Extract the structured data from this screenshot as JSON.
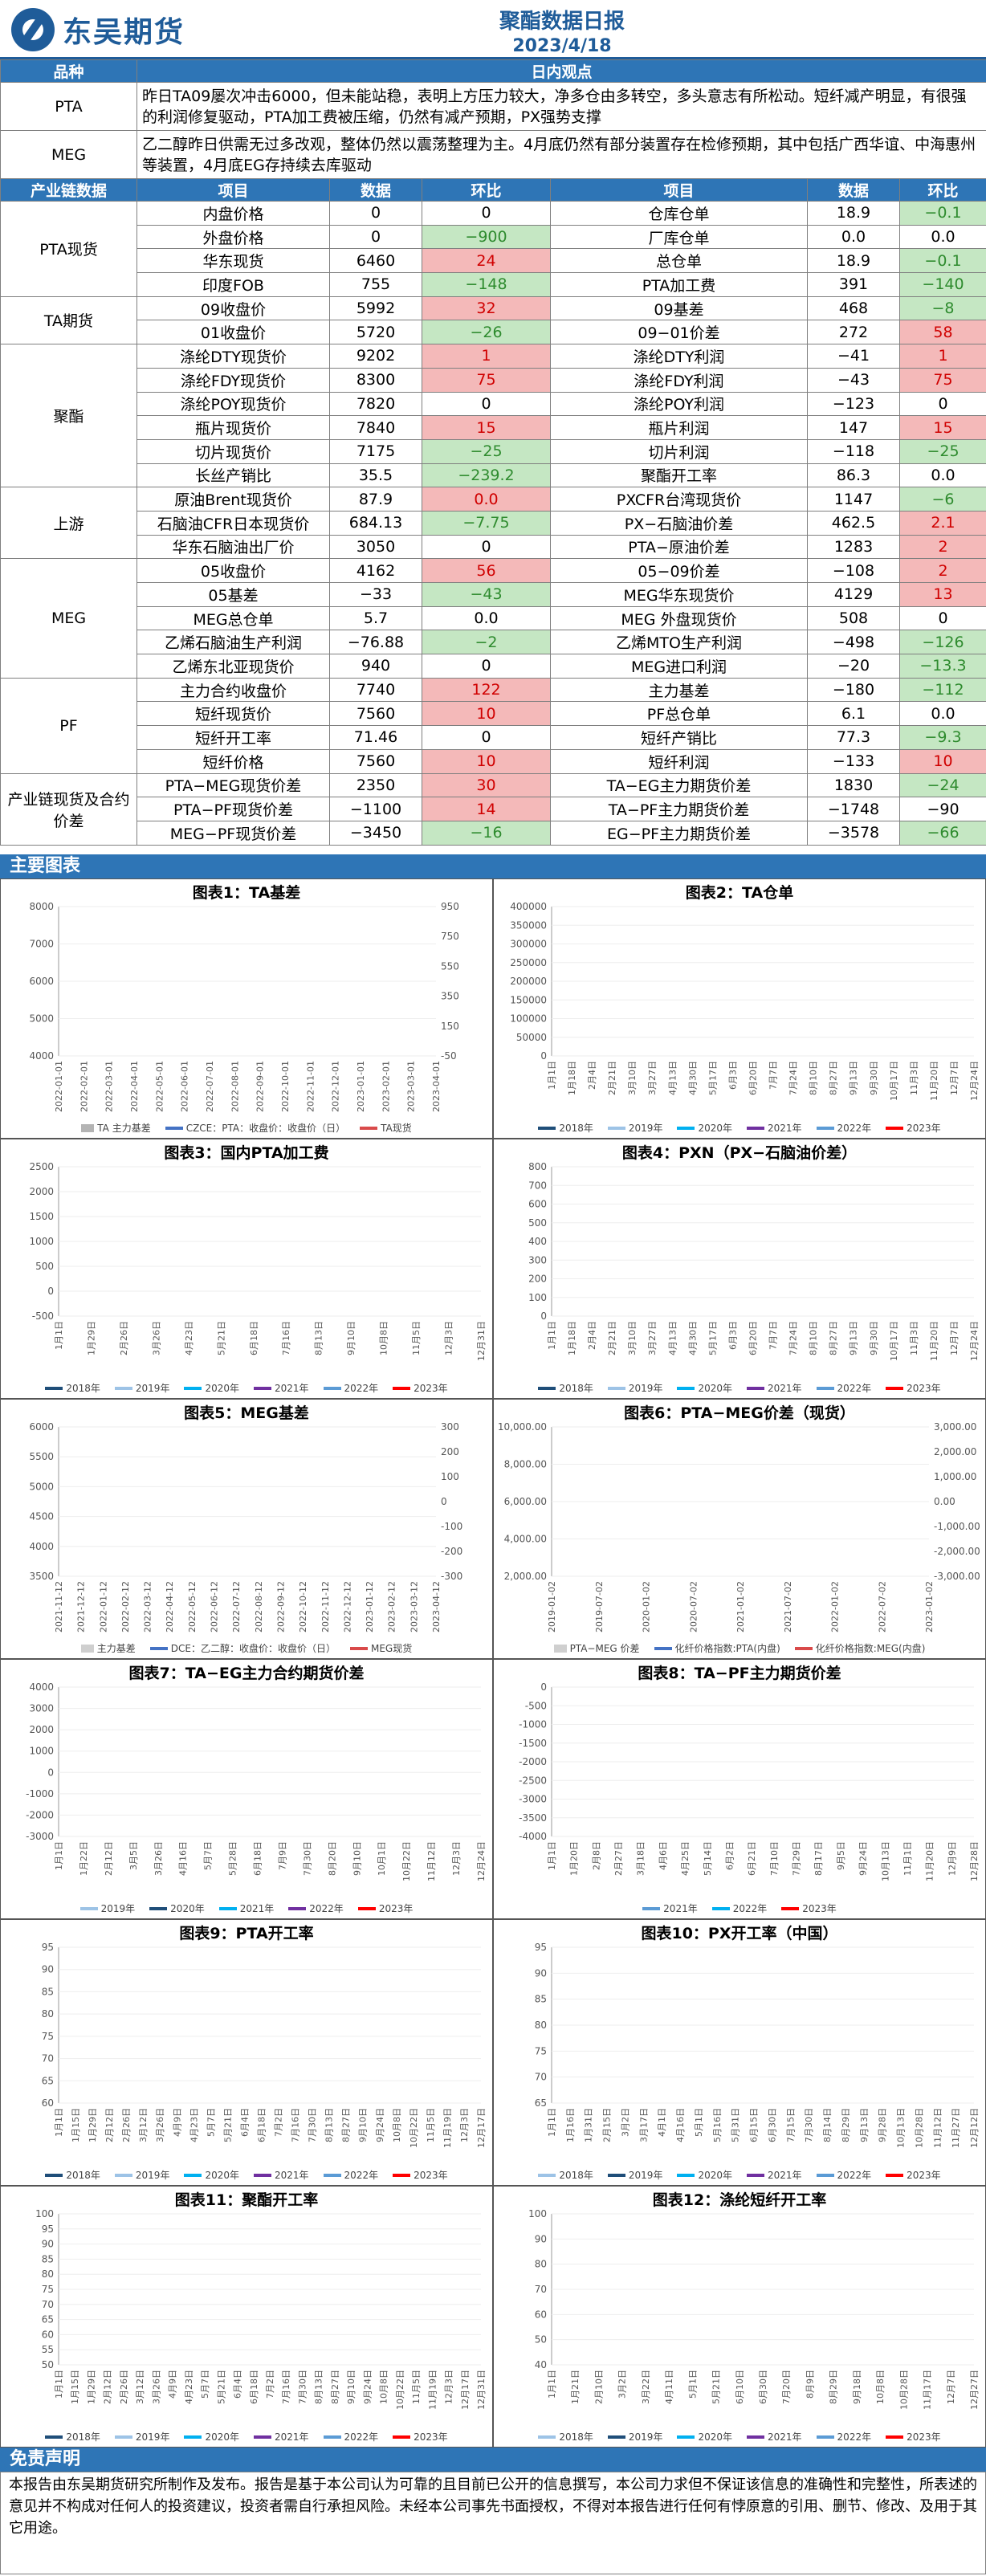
{
  "header": {
    "logo_text": "东吴期货",
    "title": "聚酯数据日报",
    "date": "2023/4/18"
  },
  "viewpoint": {
    "col_product": "品种",
    "col_view": "日内观点",
    "rows": [
      {
        "product": "PTA",
        "text": "昨日TA09屡次冲击6000，但未能站稳，表明上方压力较大，净多仓由多转空，多头意志有所松动。短纤减产明显，有很强的利润修复驱动，PTA加工费被压缩，仍然有减产预期，PX强势支撑"
      },
      {
        "product": "MEG",
        "text": "乙二醇昨日供需无过多改观，整体仍然以震荡整理为主。4月底仍然有部分装置存在检修预期，其中包括广西华谊、中海惠州等装置，4月底EG存持续去库驱动"
      }
    ]
  },
  "table": {
    "headers": [
      "产业链数据",
      "项目",
      "数据",
      "环比",
      "项目",
      "数据",
      "环比"
    ],
    "groups": [
      {
        "name": "PTA现货",
        "rows": [
          {
            "i1": "内盘价格",
            "v1": "0",
            "c1": "0",
            "s1": "",
            "i2": "仓库仓单",
            "v2": "18.9",
            "c2": "−0.1",
            "s2": "green"
          },
          {
            "i1": "外盘价格",
            "v1": "0",
            "c1": "−900",
            "s1": "green",
            "i2": "厂库仓单",
            "v2": "0.0",
            "c2": "0.0",
            "s2": ""
          },
          {
            "i1": "华东现货",
            "v1": "6460",
            "c1": "24",
            "s1": "red",
            "i2": "总仓单",
            "v2": "18.9",
            "c2": "−0.1",
            "s2": "green"
          },
          {
            "i1": "印度FOB",
            "v1": "755",
            "c1": "−148",
            "s1": "green",
            "i2": "PTA加工费",
            "v2": "391",
            "c2": "−140",
            "s2": "green"
          }
        ]
      },
      {
        "name": "TA期货",
        "rows": [
          {
            "i1": "09收盘价",
            "v1": "5992",
            "c1": "32",
            "s1": "red",
            "i2": "09基差",
            "v2": "468",
            "c2": "−8",
            "s2": "green"
          },
          {
            "i1": "01收盘价",
            "v1": "5720",
            "c1": "−26",
            "s1": "green",
            "i2": "09−01价差",
            "v2": "272",
            "c2": "58",
            "s2": "red"
          }
        ]
      },
      {
        "name": "聚酯",
        "rows": [
          {
            "i1": "涤纶DTY现货价",
            "v1": "9202",
            "c1": "1",
            "s1": "red",
            "i2": "涤纶DTY利润",
            "v2": "−41",
            "c2": "1",
            "s2": "red"
          },
          {
            "i1": "涤纶FDY现货价",
            "v1": "8300",
            "c1": "75",
            "s1": "red",
            "i2": "涤纶FDY利润",
            "v2": "−43",
            "c2": "75",
            "s2": "red"
          },
          {
            "i1": "涤纶POY现货价",
            "v1": "7820",
            "c1": "0",
            "s1": "",
            "i2": "涤纶POY利润",
            "v2": "−123",
            "c2": "0",
            "s2": ""
          },
          {
            "i1": "瓶片现货价",
            "v1": "7840",
            "c1": "15",
            "s1": "red",
            "i2": "瓶片利润",
            "v2": "147",
            "c2": "15",
            "s2": "red"
          },
          {
            "i1": "切片现货价",
            "v1": "7175",
            "c1": "−25",
            "s1": "green",
            "i2": "切片利润",
            "v2": "−118",
            "c2": "−25",
            "s2": "green"
          },
          {
            "i1": "长丝产销比",
            "v1": "35.5",
            "c1": "−239.2",
            "s1": "green",
            "i2": "聚酯开工率",
            "v2": "86.3",
            "c2": "0.0",
            "s2": ""
          }
        ]
      },
      {
        "name": "上游",
        "rows": [
          {
            "i1": "原油Brent现货价",
            "v1": "87.9",
            "c1": "0.0",
            "s1": "red",
            "i2": "PXCFR台湾现货价",
            "v2": "1147",
            "c2": "−6",
            "s2": "green"
          },
          {
            "i1": "石脑油CFR日本现货价",
            "v1": "684.13",
            "c1": "−7.75",
            "s1": "green",
            "i2": "PX−石脑油价差",
            "v2": "462.5",
            "c2": "2.1",
            "s2": "red"
          },
          {
            "i1": "华东石脑油出厂价",
            "v1": "3050",
            "c1": "0",
            "s1": "",
            "i2": "PTA−原油价差",
            "v2": "1283",
            "c2": "2",
            "s2": "red"
          }
        ]
      },
      {
        "name": "MEG",
        "rows": [
          {
            "i1": "05收盘价",
            "v1": "4162",
            "c1": "56",
            "s1": "red",
            "i2": "05−09价差",
            "v2": "−108",
            "c2": "2",
            "s2": "red"
          },
          {
            "i1": "05基差",
            "v1": "−33",
            "c1": "−43",
            "s1": "green",
            "i2": "MEG华东现货价",
            "v2": "4129",
            "c2": "13",
            "s2": "red"
          },
          {
            "i1": "MEG总仓单",
            "v1": "5.7",
            "c1": "0.0",
            "s1": "",
            "i2": "MEG 外盘现货价",
            "v2": "508",
            "c2": "0",
            "s2": ""
          },
          {
            "i1": "乙烯石脑油生产利润",
            "v1": "−76.88",
            "c1": "−2",
            "s1": "green",
            "i2": "乙烯MTO生产利润",
            "v2": "−498",
            "c2": "−126",
            "s2": "green"
          },
          {
            "i1": "乙烯东北亚现货价",
            "v1": "940",
            "c1": "0",
            "s1": "",
            "i2": "MEG进口利润",
            "v2": "−20",
            "c2": "−13.3",
            "s2": "green"
          }
        ]
      },
      {
        "name": "PF",
        "rows": [
          {
            "i1": "主力合约收盘价",
            "v1": "7740",
            "c1": "122",
            "s1": "red",
            "i2": "主力基差",
            "v2": "−180",
            "c2": "−112",
            "s2": "green"
          },
          {
            "i1": "短纤现货价",
            "v1": "7560",
            "c1": "10",
            "s1": "red",
            "i2": "PF总仓单",
            "v2": "6.1",
            "c2": "0.0",
            "s2": ""
          },
          {
            "i1": "短纤开工率",
            "v1": "71.46",
            "c1": "0",
            "s1": "",
            "i2": "短纤产销比",
            "v2": "77.3",
            "c2": "−9.3",
            "s2": "green"
          },
          {
            "i1": "短纤价格",
            "v1": "7560",
            "c1": "10",
            "s1": "red",
            "i2": "短纤利润",
            "v2": "−133",
            "c2": "10",
            "s2": "red"
          }
        ]
      },
      {
        "name": "产业链现货及合约价差",
        "rows": [
          {
            "i1": "PTA−MEG现货价差",
            "v1": "2350",
            "c1": "30",
            "s1": "red",
            "i2": "TA−EG主力期货价差",
            "v2": "1830",
            "c2": "−24",
            "s2": "green"
          },
          {
            "i1": "PTA−PF现货价差",
            "v1": "−1100",
            "c1": "14",
            "s1": "red",
            "i2": "TA−PF主力期货价差",
            "v2": "−1748",
            "c2": "−90",
            "s2": ""
          },
          {
            "i1": "MEG−PF现货价差",
            "v1": "−3450",
            "c1": "−16",
            "s1": "green",
            "i2": "EG−PF主力期货价差",
            "v2": "−3578",
            "c2": "−66",
            "s2": "green"
          }
        ]
      }
    ]
  },
  "section_charts": "主要图表",
  "chart_data": [
    {
      "type": "area",
      "title": "图表1：TA基差",
      "x_ticks": [
        "2022-01-01",
        "2022-02-01",
        "2022-03-01",
        "2022-04-01",
        "2022-05-01",
        "2022-06-01",
        "2022-07-01",
        "2022-08-01",
        "2022-09-01",
        "2022-10-01",
        "2022-11-01",
        "2022-12-01",
        "2023-01-01",
        "2023-02-01",
        "2023-03-01",
        "2023-04-01"
      ],
      "y_ticks": [
        "8000",
        "7000",
        "6000",
        "5000",
        "4000"
      ],
      "y2_ticks": [
        "950",
        "750",
        "550",
        "350",
        "150",
        "-50"
      ],
      "legend": [
        "TA 主力基差",
        "CZCE：PTA：收盘价：收盘价（日）",
        "TA现货"
      ],
      "colors": [
        "#b4b4b4",
        "#4472c4",
        "#d94a4a"
      ]
    },
    {
      "type": "line",
      "title": "图表2：TA仓单",
      "x_ticks": [
        "1月1日",
        "1月18日",
        "2月4日",
        "2月21日",
        "3月10日",
        "3月27日",
        "4月13日",
        "4月30日",
        "5月17日",
        "6月3日",
        "6月20日",
        "7月7日",
        "7月24日",
        "8月10日",
        "8月27日",
        "9月13日",
        "9月30日",
        "10月17日",
        "11月3日",
        "11月20日",
        "12月7日",
        "12月24日"
      ],
      "y_ticks": [
        "400000",
        "350000",
        "300000",
        "250000",
        "200000",
        "150000",
        "100000",
        "50000",
        "0"
      ],
      "legend": [
        "2018年",
        "2019年",
        "2020年",
        "2021年",
        "2022年",
        "2023年"
      ],
      "colors": [
        "#1f4e79",
        "#9dc3e6",
        "#00b0f0",
        "#7030a0",
        "#5b9bd5",
        "#ff0000"
      ]
    },
    {
      "type": "line",
      "title": "图表3：国内PTA加工费",
      "x_ticks": [
        "1月1日",
        "1月29日",
        "2月26日",
        "3月26日",
        "4月23日",
        "5月21日",
        "6月18日",
        "7月16日",
        "8月13日",
        "9月10日",
        "10月8日",
        "11月5日",
        "12月3日",
        "12月31日"
      ],
      "y_ticks": [
        "2500",
        "2000",
        "1500",
        "1000",
        "500",
        "0",
        "-500"
      ],
      "legend": [
        "2018年",
        "2019年",
        "2020年",
        "2021年",
        "2022年",
        "2023年"
      ],
      "colors": [
        "#1f4e79",
        "#9dc3e6",
        "#00b0f0",
        "#7030a0",
        "#5b9bd5",
        "#ff0000"
      ]
    },
    {
      "type": "line",
      "title": "图表4：PXN（PX−石脑油价差）",
      "x_ticks": [
        "1月1日",
        "1月18日",
        "2月4日",
        "2月21日",
        "3月10日",
        "3月27日",
        "4月13日",
        "4月30日",
        "5月17日",
        "6月3日",
        "6月20日",
        "7月7日",
        "7月24日",
        "8月10日",
        "8月27日",
        "9月13日",
        "9月30日",
        "10月17日",
        "11月3日",
        "11月20日",
        "12月7日",
        "12月24日"
      ],
      "y_ticks": [
        "800",
        "700",
        "600",
        "500",
        "400",
        "300",
        "200",
        "100",
        "0"
      ],
      "legend": [
        "2018年",
        "2019年",
        "2020年",
        "2021年",
        "2022年",
        "2023年"
      ],
      "colors": [
        "#1f4e79",
        "#9dc3e6",
        "#00b0f0",
        "#7030a0",
        "#5b9bd5",
        "#ff0000"
      ]
    },
    {
      "type": "area",
      "title": "图表5：MEG基差",
      "x_ticks": [
        "2021-11-12",
        "2021-12-12",
        "2022-01-12",
        "2022-02-12",
        "2022-03-12",
        "2022-04-12",
        "2022-05-12",
        "2022-06-12",
        "2022-07-12",
        "2022-08-12",
        "2022-09-12",
        "2022-10-12",
        "2022-11-12",
        "2022-12-12",
        "2023-01-12",
        "2023-02-12",
        "2023-03-12",
        "2023-04-12"
      ],
      "y_ticks": [
        "6000",
        "5500",
        "5000",
        "4500",
        "4000",
        "3500"
      ],
      "y2_ticks": [
        "300",
        "200",
        "100",
        "0",
        "-100",
        "-200",
        "-300"
      ],
      "legend": [
        "主力基差",
        "DCE：乙二醇：收盘价：收盘价（日）",
        "MEG现货"
      ],
      "colors": [
        "#cfcfcf",
        "#4472c4",
        "#d94a4a"
      ]
    },
    {
      "type": "area",
      "title": "图表6：PTA−MEG价差（现货）",
      "x_ticks": [
        "2019-01-02",
        "2019-07-02",
        "2020-01-02",
        "2020-07-02",
        "2021-01-02",
        "2021-07-02",
        "2022-01-02",
        "2022-07-02",
        "2023-01-02"
      ],
      "y_ticks": [
        "10,000.00",
        "8,000.00",
        "6,000.00",
        "4,000.00",
        "2,000.00"
      ],
      "y2_ticks": [
        "3,000.00",
        "2,000.00",
        "1,000.00",
        "0.00",
        "-1,000.00",
        "-2,000.00",
        "-3,000.00"
      ],
      "legend": [
        "PTA−MEG 价差",
        "化纤价格指数:PTA(内盘)",
        "化纤价格指数:MEG(内盘)"
      ],
      "colors": [
        "#cfcfcf",
        "#4472c4",
        "#d94a4a"
      ]
    },
    {
      "type": "line",
      "title": "图表7：TA−EG主力合约期货价差",
      "x_ticks": [
        "1月1日",
        "1月22日",
        "2月12日",
        "3月5日",
        "3月26日",
        "4月16日",
        "5月7日",
        "5月28日",
        "6月18日",
        "7月9日",
        "7月30日",
        "8月20日",
        "9月10日",
        "10月1日",
        "10月22日",
        "11月12日",
        "12月3日",
        "12月24日"
      ],
      "y_ticks": [
        "4000",
        "3000",
        "2000",
        "1000",
        "0",
        "-1000",
        "-2000",
        "-3000"
      ],
      "legend": [
        "2019年",
        "2020年",
        "2021年",
        "2022年",
        "2023年"
      ],
      "colors": [
        "#9dc3e6",
        "#1f4e79",
        "#00b0f0",
        "#7030a0",
        "#ff0000"
      ]
    },
    {
      "type": "line",
      "title": "图表8：TA−PF主力期货价差",
      "x_ticks": [
        "1月1日",
        "1月20日",
        "2月8日",
        "2月27日",
        "3月18日",
        "4月6日",
        "4月25日",
        "5月14日",
        "6月2日",
        "6月21日",
        "7月10日",
        "7月29日",
        "8月17日",
        "9月5日",
        "9月24日",
        "10月13日",
        "11月1日",
        "11月20日",
        "12月9日",
        "12月28日"
      ],
      "y_ticks": [
        "0",
        "-500",
        "-1000",
        "-1500",
        "-2000",
        "-2500",
        "-3000",
        "-3500",
        "-4000"
      ],
      "legend": [
        "2021年",
        "2022年",
        "2023年"
      ],
      "colors": [
        "#5b9bd5",
        "#00b0f0",
        "#ff0000"
      ]
    },
    {
      "type": "line",
      "title": "图表9：PTA开工率",
      "x_ticks": [
        "1月1日",
        "1月15日",
        "1月29日",
        "2月12日",
        "2月26日",
        "3月12日",
        "3月26日",
        "4月9日",
        "4月23日",
        "5月7日",
        "5月21日",
        "6月4日",
        "6月18日",
        "7月2日",
        "7月16日",
        "7月30日",
        "8月13日",
        "8月27日",
        "9月10日",
        "9月24日",
        "10月8日",
        "10月22日",
        "11月5日",
        "11月19日",
        "12月3日",
        "12月17日"
      ],
      "y_ticks": [
        "95",
        "90",
        "85",
        "80",
        "75",
        "70",
        "65",
        "60"
      ],
      "legend": [
        "2018年",
        "2019年",
        "2020年",
        "2021年",
        "2022年",
        "2023年"
      ],
      "colors": [
        "#1f4e79",
        "#9dc3e6",
        "#00b0f0",
        "#7030a0",
        "#5b9bd5",
        "#ff0000"
      ]
    },
    {
      "type": "line",
      "title": "图表10：PX开工率（中国）",
      "x_ticks": [
        "1月1日",
        "1月16日",
        "1月31日",
        "2月15日",
        "3月2日",
        "3月17日",
        "4月1日",
        "4月16日",
        "5月1日",
        "5月16日",
        "5月31日",
        "6月15日",
        "6月30日",
        "7月15日",
        "7月30日",
        "8月14日",
        "8月29日",
        "9月13日",
        "9月28日",
        "10月13日",
        "10月28日",
        "11月12日",
        "11月27日",
        "12月12日"
      ],
      "y_ticks": [
        "95",
        "90",
        "85",
        "80",
        "75",
        "70",
        "65"
      ],
      "legend": [
        "2018年",
        "2019年",
        "2020年",
        "2021年",
        "2022年",
        "2023年"
      ],
      "colors": [
        "#9dc3e6",
        "#1f4e79",
        "#00b0f0",
        "#7030a0",
        "#5b9bd5",
        "#ff0000"
      ]
    },
    {
      "type": "line",
      "title": "图表11：聚酯开工率",
      "x_ticks": [
        "1月1日",
        "1月15日",
        "1月29日",
        "2月12日",
        "2月26日",
        "3月12日",
        "3月26日",
        "4月9日",
        "4月23日",
        "5月7日",
        "5月21日",
        "6月4日",
        "6月18日",
        "7月2日",
        "7月16日",
        "7月30日",
        "8月13日",
        "8月27日",
        "9月10日",
        "9月24日",
        "10月8日",
        "10月22日",
        "11月5日",
        "11月19日",
        "12月3日",
        "12月17日",
        "12月31日"
      ],
      "y_ticks": [
        "100",
        "95",
        "90",
        "85",
        "80",
        "75",
        "70",
        "65",
        "60",
        "55",
        "50"
      ],
      "legend": [
        "2018年",
        "2019年",
        "2020年",
        "2021年",
        "2022年",
        "2023年"
      ],
      "colors": [
        "#1f4e79",
        "#9dc3e6",
        "#00b0f0",
        "#7030a0",
        "#5b9bd5",
        "#ff0000"
      ]
    },
    {
      "type": "line",
      "title": "图表12：涤纶短纤开工率",
      "x_ticks": [
        "1月1日",
        "1月21日",
        "2月10日",
        "3月2日",
        "3月22日",
        "4月11日",
        "5月1日",
        "5月21日",
        "6月10日",
        "6月30日",
        "7月20日",
        "8月9日",
        "8月29日",
        "9月18日",
        "10月8日",
        "10月28日",
        "11月17日",
        "12月7日",
        "12月27日"
      ],
      "y_ticks": [
        "100",
        "90",
        "80",
        "70",
        "60",
        "50",
        "40"
      ],
      "legend": [
        "2018年",
        "2019年",
        "2020年",
        "2021年",
        "2022年",
        "2023年"
      ],
      "colors": [
        "#9dc3e6",
        "#1f4e79",
        "#00b0f0",
        "#7030a0",
        "#5b9bd5",
        "#ff0000"
      ]
    }
  ],
  "disclaimer": {
    "title": "免责声明",
    "text": "本报告由东吴期货研究所制作及发布。报告是基于本公司认为可靠的且目前已公开的信息撰写，本公司力求但不保证该信息的准确性和完整性，所表述的意见并不构成对任何人的投资建议，投资者需自行承担风险。未经本公司事先书面授权，不得对本报告进行任何有悖原意的引用、删节、修改、及用于其它用途。"
  }
}
